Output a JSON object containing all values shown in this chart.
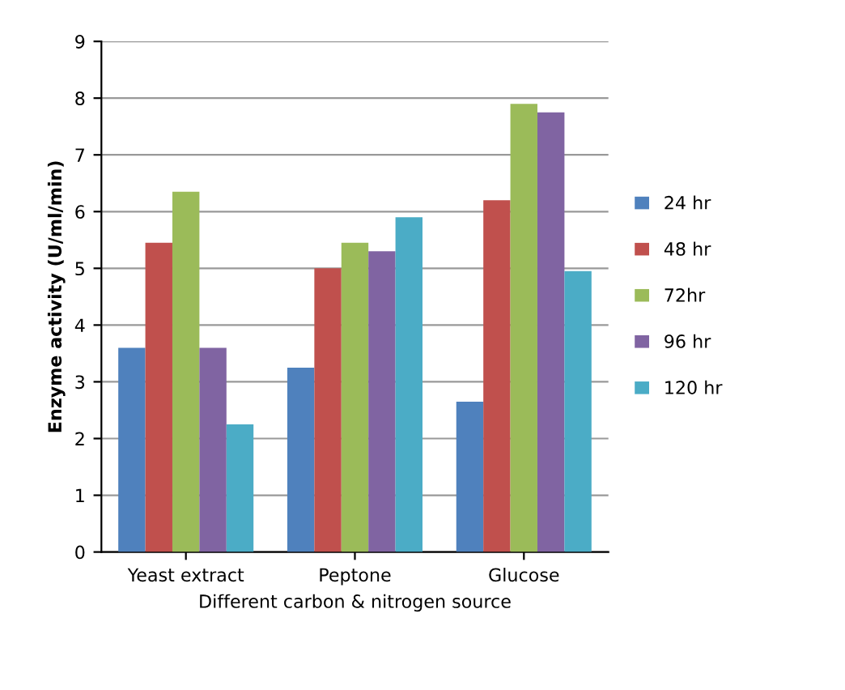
{
  "chart_data": {
    "type": "bar",
    "xlabel": "Different carbon & nitrogen source",
    "ylabel": "Enzyme activity (U/ml/min)",
    "categories": [
      "Yeast extract",
      "Peptone",
      "Glucose"
    ],
    "series": [
      {
        "name": "24 hr",
        "color": "#4f81bd",
        "values": [
          3.6,
          3.25,
          2.65
        ]
      },
      {
        "name": "48 hr",
        "color": "#c0504d",
        "values": [
          5.45,
          5.0,
          6.2
        ]
      },
      {
        "name": "72hr",
        "color": "#9bbb59",
        "values": [
          6.35,
          5.45,
          7.9
        ]
      },
      {
        "name": "96 hr",
        "color": "#8064a2",
        "values": [
          3.6,
          5.3,
          7.75
        ]
      },
      {
        "name": "120 hr",
        "color": "#4bacc6",
        "values": [
          2.25,
          5.9,
          4.95
        ]
      }
    ],
    "ylim": [
      0,
      9
    ],
    "yticks": [
      0,
      1,
      2,
      3,
      4,
      5,
      6,
      7,
      8,
      9
    ],
    "grid": "y",
    "legend": "right"
  }
}
